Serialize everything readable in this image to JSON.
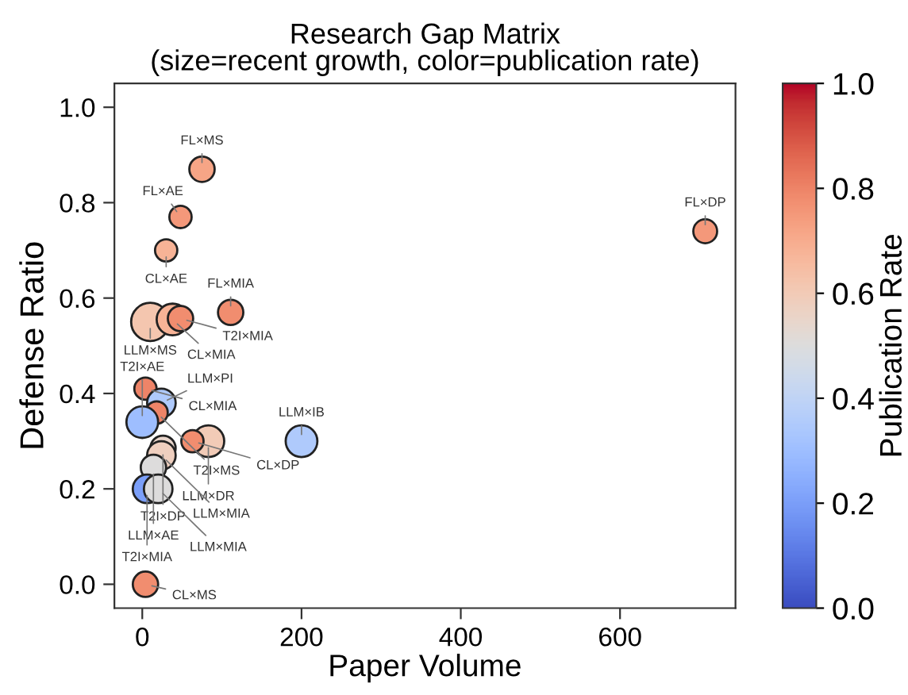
{
  "chart_data": {
    "type": "bubble",
    "title": "Research Gap Matrix\n(size=recent growth, color=publication rate)",
    "xlabel": "Paper Volume",
    "ylabel": "Defense Ratio",
    "clabel": "Publication Rate",
    "x": [
      75,
      48,
      30,
      111,
      10,
      38,
      48,
      707,
      4,
      24,
      18,
      0,
      200,
      83,
      63,
      26,
      24,
      14,
      6,
      20,
      4
    ],
    "values": [
      0.87,
      0.77,
      0.7,
      0.57,
      0.55,
      0.555,
      0.557,
      0.74,
      0.41,
      0.38,
      0.36,
      0.34,
      0.3,
      0.3,
      0.3,
      0.285,
      0.27,
      0.245,
      0.2,
      0.2,
      0.0
    ],
    "sizes": [
      0.44,
      0.34,
      0.34,
      0.44,
      1,
      0.69,
      0.44,
      0.39,
      0.34,
      0.56,
      0.34,
      0.69,
      0.69,
      0.69,
      0.34,
      0.44,
      0.56,
      0.44,
      0.56,
      0.56,
      0.44
    ],
    "cvalues": [
      0.72,
      0.75,
      0.68,
      0.78,
      0.62,
      0.68,
      0.78,
      0.75,
      0.8,
      0.35,
      0.8,
      0.3,
      0.35,
      0.6,
      0.78,
      0.55,
      0.58,
      0.5,
      0.2,
      0.5,
      0.78
    ],
    "annotations": [
      {
        "text": "FL×MS",
        "x": 75,
        "y": 0.87
      },
      {
        "text": "FL×AE",
        "x": 48,
        "y": 0.77
      },
      {
        "text": "CL×AE",
        "x": 30,
        "y": 0.7
      },
      {
        "text": "FL×MIA",
        "x": 111,
        "y": 0.57
      },
      {
        "text": "LLM×MS",
        "x": 10,
        "y": 0.55
      },
      {
        "text": "CL×MIA",
        "x": 38,
        "y": 0.555
      },
      {
        "text": "T2I×MIA",
        "x": 48,
        "y": 0.557
      },
      {
        "text": "FL×DP",
        "x": 707,
        "y": 0.74
      },
      {
        "text": "CL×MIA",
        "x": 4,
        "y": 0.41
      },
      {
        "text": "LLM×PI",
        "x": 24,
        "y": 0.38
      },
      {
        "text": "T2I×MS",
        "x": 18,
        "y": 0.36
      },
      {
        "text": "T2I×AE",
        "x": 0,
        "y": 0.34
      },
      {
        "text": "LLM×IB",
        "x": 200,
        "y": 0.3
      },
      {
        "text": "LLM×DR",
        "x": 83,
        "y": 0.3
      },
      {
        "text": "CL×DP",
        "x": 63,
        "y": 0.3
      },
      {
        "text": "T2I×DP",
        "x": 26,
        "y": 0.285
      },
      {
        "text": "LLM×MIA",
        "x": 24,
        "y": 0.27
      },
      {
        "text": "LLM×AE",
        "x": 14,
        "y": 0.245
      },
      {
        "text": "T2I×MIA",
        "x": 6,
        "y": 0.2
      },
      {
        "text": "LLM×MIA",
        "x": 20,
        "y": 0.2
      },
      {
        "text": "CL×MS",
        "x": 4,
        "y": 0.0
      }
    ],
    "xlim": [
      -35,
      745
    ],
    "xticks": [
      0,
      200,
      400,
      600
    ],
    "ylim": [
      -0.05,
      1.05
    ],
    "yticks": [
      {
        "value": 0,
        "label": "0.0"
      },
      0.2,
      0.4,
      0.6,
      0.8,
      {
        "value": 1,
        "label": "1.0"
      }
    ],
    "clim": [
      0,
      1
    ],
    "cticks": [
      {
        "value": 0,
        "label": "0.0"
      },
      0.2,
      0.4,
      0.6,
      0.8,
      {
        "value": 1,
        "label": "1.0"
      }
    ],
    "grid": false
  }
}
